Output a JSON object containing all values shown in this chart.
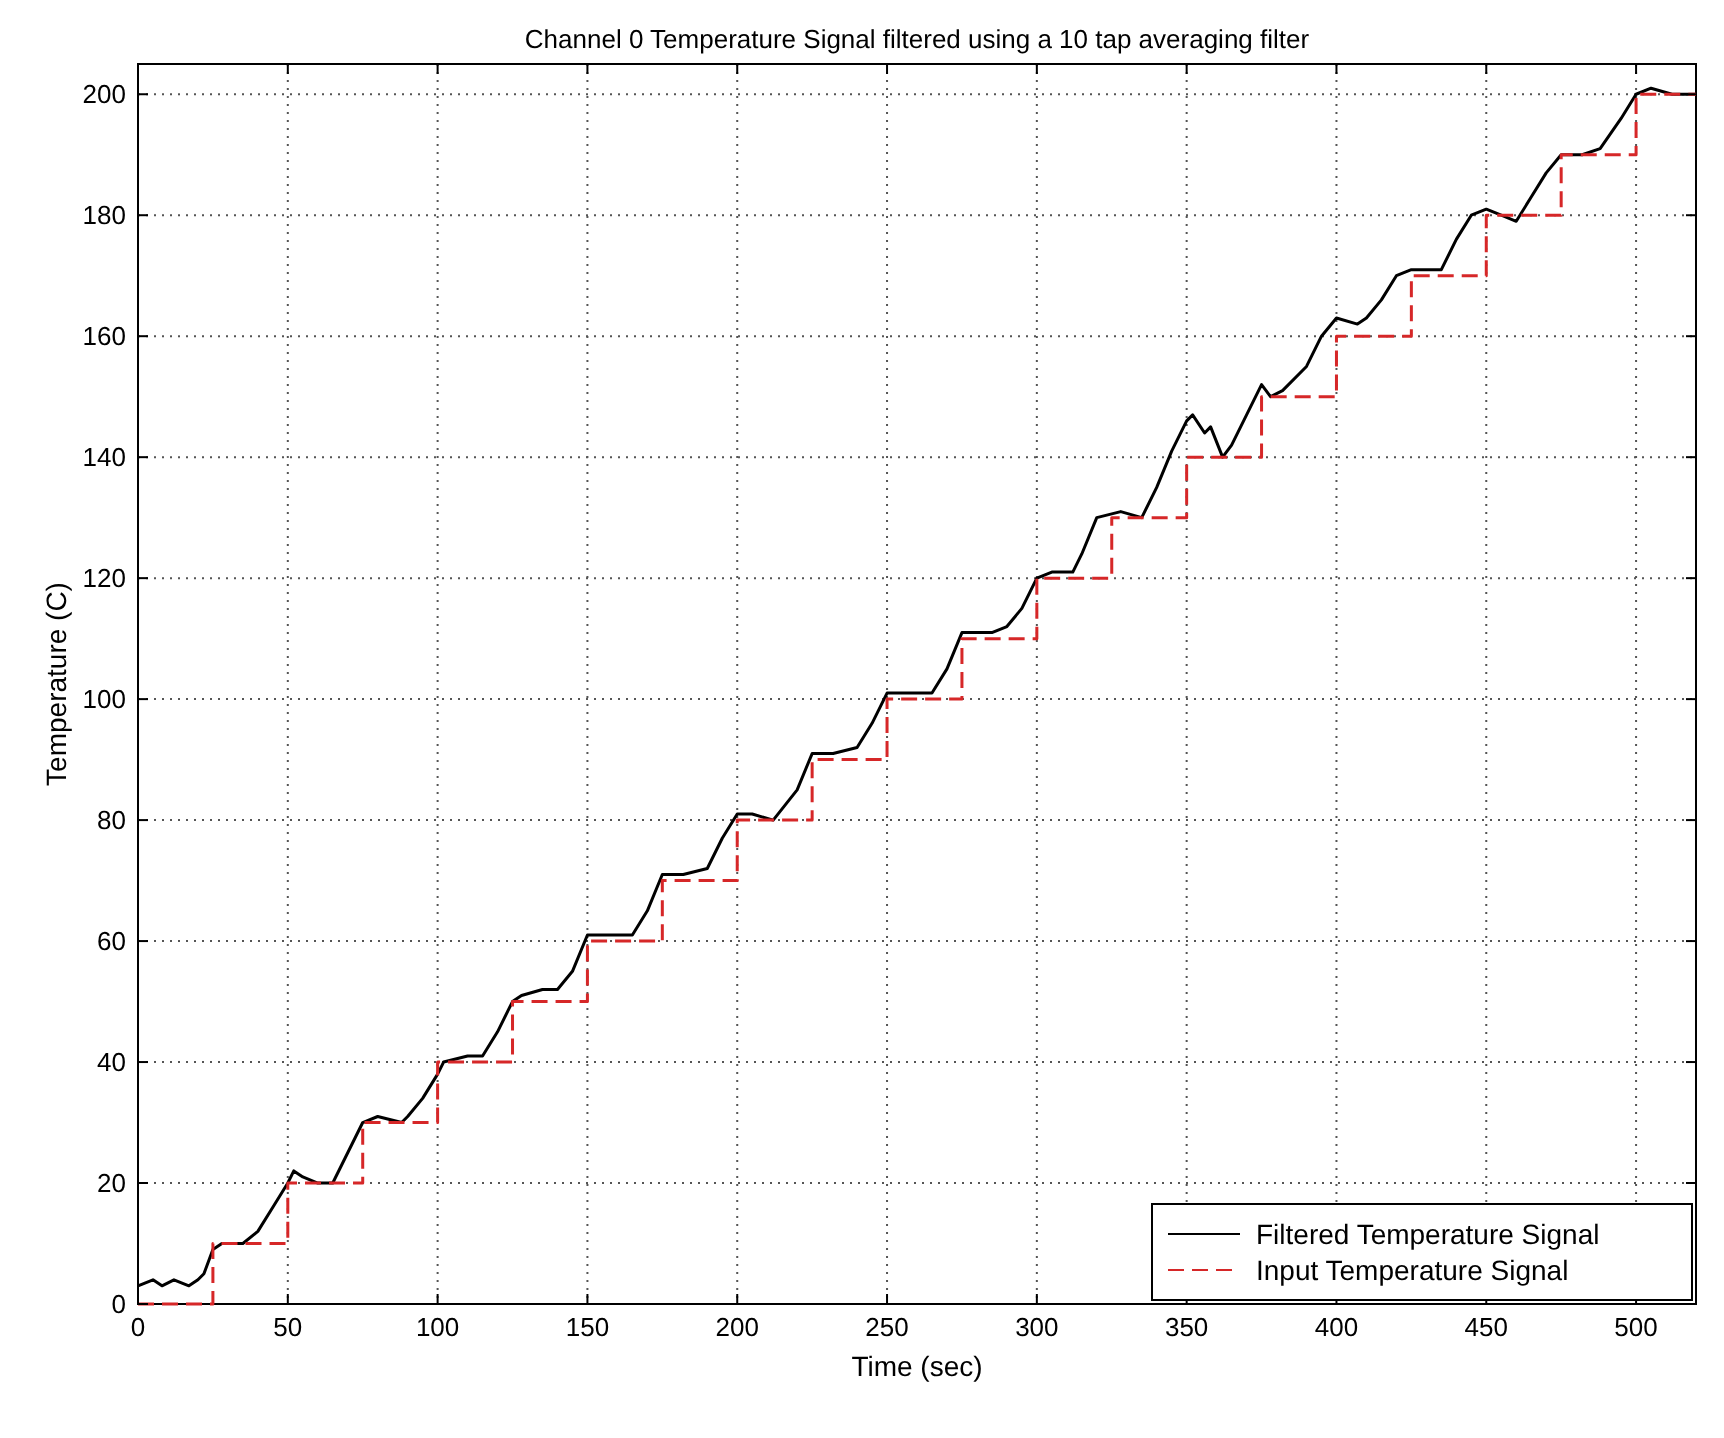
{
  "chart_data": {
    "type": "line",
    "title": "Channel 0 Temperature Signal filtered using a 10 tap averaging filter",
    "xlabel": "Time (sec)",
    "ylabel": "Temperature (C)",
    "xlim": [
      0,
      520
    ],
    "ylim": [
      0,
      205
    ],
    "xticks": [
      0,
      50,
      100,
      150,
      200,
      250,
      300,
      350,
      400,
      450,
      500
    ],
    "yticks": [
      0,
      20,
      40,
      60,
      80,
      100,
      120,
      140,
      160,
      180,
      200
    ],
    "grid": true,
    "legend": "bottom right",
    "series": [
      {
        "name": "Filtered Temperature Signal",
        "color": "#000000",
        "line_style": "solid",
        "x": [
          0,
          5,
          8,
          12,
          17,
          20,
          22,
          25,
          28,
          35,
          40,
          45,
          50,
          52,
          55,
          60,
          65,
          70,
          75,
          80,
          88,
          90,
          95,
          100,
          102,
          110,
          115,
          120,
          125,
          128,
          135,
          140,
          145,
          150,
          155,
          165,
          170,
          175,
          182,
          190,
          195,
          200,
          205,
          212,
          220,
          225,
          232,
          240,
          245,
          250,
          258,
          265,
          270,
          275,
          285,
          290,
          295,
          300,
          305,
          312,
          315,
          320,
          328,
          335,
          340,
          345,
          350,
          352,
          356,
          358,
          362,
          365,
          370,
          375,
          378,
          382,
          390,
          395,
          400,
          407,
          410,
          415,
          420,
          425,
          435,
          440,
          445,
          450,
          455,
          460,
          465,
          470,
          475,
          482,
          488,
          495,
          500,
          505,
          512,
          520
        ],
        "values": [
          3,
          4,
          3,
          4,
          3,
          4,
          5,
          9,
          10,
          10,
          12,
          16,
          20,
          22,
          21,
          20,
          20,
          25,
          30,
          31,
          30,
          31,
          34,
          38,
          40,
          41,
          41,
          45,
          50,
          51,
          52,
          52,
          55,
          61,
          61,
          61,
          65,
          71,
          71,
          72,
          77,
          81,
          81,
          80,
          85,
          91,
          91,
          92,
          96,
          101,
          101,
          101,
          105,
          111,
          111,
          112,
          115,
          120,
          121,
          121,
          124,
          130,
          131,
          130,
          135,
          141,
          146,
          147,
          144,
          145,
          140,
          142,
          147,
          152,
          150,
          151,
          155,
          160,
          163,
          162,
          163,
          166,
          170,
          171,
          171,
          176,
          180,
          181,
          180,
          179,
          183,
          187,
          190,
          190,
          191,
          196,
          200,
          201,
          200,
          200
        ]
      },
      {
        "name": "Input Temperature Signal",
        "color": "#d62728",
        "type": "step",
        "line_style": "dashed",
        "x": [
          0,
          25,
          50,
          75,
          100,
          125,
          150,
          175,
          200,
          225,
          250,
          275,
          300,
          325,
          350,
          375,
          400,
          425,
          450,
          475,
          500,
          520
        ],
        "values": [
          0,
          10,
          20,
          30,
          40,
          50,
          60,
          70,
          80,
          90,
          100,
          110,
          120,
          130,
          140,
          150,
          160,
          170,
          180,
          190,
          200,
          200
        ]
      }
    ]
  }
}
